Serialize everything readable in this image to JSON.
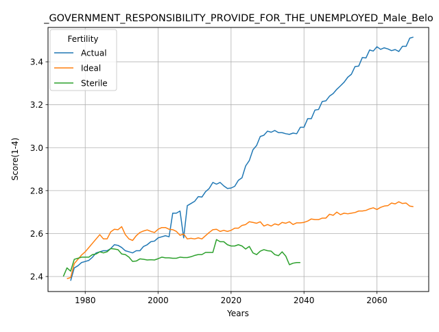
{
  "chart_data": {
    "type": "line",
    "title": "_GOVERNMENT_RESPONSIBILITY_PROVIDE_FOR_THE_UNEMPLOYED_Male_Belo",
    "xlabel": "Years",
    "ylabel": "Score(1-4)",
    "xlim": [
      1969.8,
      2074.2
    ],
    "ylim": [
      2.33,
      3.56
    ],
    "x_ticks": [
      1980,
      2000,
      2020,
      2040,
      2060
    ],
    "y_ticks": [
      2.4,
      2.6,
      2.8,
      3.0,
      3.2,
      3.4
    ],
    "x_tick_labels": [
      "1980",
      "2000",
      "2020",
      "2040",
      "2060"
    ],
    "y_tick_labels": [
      "2.4",
      "2.6",
      "2.8",
      "3.0",
      "3.2",
      "3.4"
    ],
    "grid": true,
    "legend": {
      "title": "Fertility",
      "position": "top-left"
    },
    "series": [
      {
        "name": "Actual",
        "color": "#1f77b4",
        "points": [
          [
            1976,
            2.38
          ],
          [
            1977,
            2.44
          ],
          [
            1978,
            2.45
          ],
          [
            1979,
            2.465
          ],
          [
            1980,
            2.47
          ],
          [
            1981,
            2.475
          ],
          [
            1982,
            2.49
          ],
          [
            1983,
            2.51
          ],
          [
            1984,
            2.515
          ],
          [
            1985,
            2.52
          ],
          [
            1986,
            2.52
          ],
          [
            1987,
            2.53
          ],
          [
            1988,
            2.548
          ],
          [
            1989,
            2.545
          ],
          [
            1990,
            2.535
          ],
          [
            1991,
            2.52
          ],
          [
            1992,
            2.515
          ],
          [
            1993,
            2.51
          ],
          [
            1994,
            2.52
          ],
          [
            1995,
            2.52
          ],
          [
            1996,
            2.54
          ],
          [
            1997,
            2.548
          ],
          [
            1998,
            2.562
          ],
          [
            1999,
            2.565
          ],
          [
            2000,
            2.58
          ],
          [
            2001,
            2.585
          ],
          [
            2002,
            2.59
          ],
          [
            2003,
            2.585
          ],
          [
            2004,
            2.695
          ],
          [
            2005,
            2.695
          ],
          [
            2006,
            2.705
          ],
          [
            2007,
            2.58
          ],
          [
            2008,
            2.73
          ],
          [
            2009,
            2.74
          ],
          [
            2010,
            2.75
          ],
          [
            2011,
            2.772
          ],
          [
            2012,
            2.77
          ],
          [
            2013,
            2.795
          ],
          [
            2014,
            2.81
          ],
          [
            2015,
            2.838
          ],
          [
            2016,
            2.83
          ],
          [
            2017,
            2.838
          ],
          [
            2018,
            2.822
          ],
          [
            2019,
            2.81
          ],
          [
            2020,
            2.812
          ],
          [
            2021,
            2.82
          ],
          [
            2022,
            2.848
          ],
          [
            2023,
            2.86
          ],
          [
            2024,
            2.915
          ],
          [
            2025,
            2.94
          ],
          [
            2026,
            2.99
          ],
          [
            2027,
            3.01
          ],
          [
            2028,
            3.052
          ],
          [
            2029,
            3.058
          ],
          [
            2030,
            3.077
          ],
          [
            2031,
            3.072
          ],
          [
            2032,
            3.08
          ],
          [
            2033,
            3.07
          ],
          [
            2034,
            3.07
          ],
          [
            2035,
            3.065
          ],
          [
            2036,
            3.062
          ],
          [
            2037,
            3.068
          ],
          [
            2038,
            3.065
          ],
          [
            2039,
            3.095
          ],
          [
            2040,
            3.095
          ],
          [
            2041,
            3.135
          ],
          [
            2042,
            3.135
          ],
          [
            2043,
            3.175
          ],
          [
            2044,
            3.178
          ],
          [
            2045,
            3.215
          ],
          [
            2046,
            3.218
          ],
          [
            2047,
            3.24
          ],
          [
            2048,
            3.252
          ],
          [
            2049,
            3.272
          ],
          [
            2050,
            3.288
          ],
          [
            2051,
            3.305
          ],
          [
            2052,
            3.328
          ],
          [
            2053,
            3.342
          ],
          [
            2054,
            3.378
          ],
          [
            2055,
            3.38
          ],
          [
            2056,
            3.42
          ],
          [
            2057,
            3.418
          ],
          [
            2058,
            3.455
          ],
          [
            2059,
            3.45
          ],
          [
            2060,
            3.47
          ],
          [
            2061,
            3.458
          ],
          [
            2062,
            3.465
          ],
          [
            2063,
            3.46
          ],
          [
            2064,
            3.452
          ],
          [
            2065,
            3.457
          ],
          [
            2066,
            3.448
          ],
          [
            2067,
            3.472
          ],
          [
            2068,
            3.472
          ],
          [
            2069,
            3.51
          ],
          [
            2070,
            3.515
          ]
        ]
      },
      {
        "name": "Ideal",
        "color": "#ff7f0e",
        "points": [
          [
            1975,
            2.39
          ],
          [
            1976,
            2.395
          ],
          [
            1977,
            2.46
          ],
          [
            1978,
            2.48
          ],
          [
            1979,
            2.5
          ],
          [
            1980,
            2.515
          ],
          [
            1981,
            2.535
          ],
          [
            1982,
            2.555
          ],
          [
            1983,
            2.575
          ],
          [
            1984,
            2.595
          ],
          [
            1985,
            2.575
          ],
          [
            1986,
            2.575
          ],
          [
            1987,
            2.608
          ],
          [
            1988,
            2.62
          ],
          [
            1989,
            2.618
          ],
          [
            1990,
            2.632
          ],
          [
            1991,
            2.595
          ],
          [
            1992,
            2.575
          ],
          [
            1993,
            2.568
          ],
          [
            1994,
            2.59
          ],
          [
            1995,
            2.605
          ],
          [
            1996,
            2.612
          ],
          [
            1997,
            2.617
          ],
          [
            1998,
            2.61
          ],
          [
            1999,
            2.605
          ],
          [
            2000,
            2.62
          ],
          [
            2001,
            2.628
          ],
          [
            2002,
            2.628
          ],
          [
            2003,
            2.62
          ],
          [
            2004,
            2.618
          ],
          [
            2005,
            2.61
          ],
          [
            2006,
            2.592
          ],
          [
            2007,
            2.598
          ],
          [
            2008,
            2.575
          ],
          [
            2009,
            2.578
          ],
          [
            2010,
            2.575
          ],
          [
            2011,
            2.58
          ],
          [
            2012,
            2.575
          ],
          [
            2013,
            2.59
          ],
          [
            2014,
            2.605
          ],
          [
            2015,
            2.618
          ],
          [
            2016,
            2.62
          ],
          [
            2017,
            2.61
          ],
          [
            2018,
            2.615
          ],
          [
            2019,
            2.61
          ],
          [
            2020,
            2.615
          ],
          [
            2021,
            2.625
          ],
          [
            2022,
            2.625
          ],
          [
            2023,
            2.638
          ],
          [
            2024,
            2.642
          ],
          [
            2025,
            2.655
          ],
          [
            2026,
            2.652
          ],
          [
            2027,
            2.648
          ],
          [
            2028,
            2.655
          ],
          [
            2029,
            2.635
          ],
          [
            2030,
            2.642
          ],
          [
            2031,
            2.635
          ],
          [
            2032,
            2.645
          ],
          [
            2033,
            2.64
          ],
          [
            2034,
            2.652
          ],
          [
            2035,
            2.648
          ],
          [
            2036,
            2.655
          ],
          [
            2037,
            2.642
          ],
          [
            2038,
            2.65
          ],
          [
            2039,
            2.65
          ],
          [
            2040,
            2.652
          ],
          [
            2041,
            2.658
          ],
          [
            2042,
            2.668
          ],
          [
            2043,
            2.665
          ],
          [
            2044,
            2.665
          ],
          [
            2045,
            2.672
          ],
          [
            2046,
            2.672
          ],
          [
            2047,
            2.69
          ],
          [
            2048,
            2.685
          ],
          [
            2049,
            2.7
          ],
          [
            2050,
            2.688
          ],
          [
            2051,
            2.695
          ],
          [
            2052,
            2.692
          ],
          [
            2053,
            2.695
          ],
          [
            2054,
            2.698
          ],
          [
            2055,
            2.705
          ],
          [
            2056,
            2.705
          ],
          [
            2057,
            2.708
          ],
          [
            2058,
            2.715
          ],
          [
            2059,
            2.72
          ],
          [
            2060,
            2.712
          ],
          [
            2061,
            2.722
          ],
          [
            2062,
            2.728
          ],
          [
            2063,
            2.73
          ],
          [
            2064,
            2.742
          ],
          [
            2065,
            2.738
          ],
          [
            2066,
            2.748
          ],
          [
            2067,
            2.74
          ],
          [
            2068,
            2.742
          ],
          [
            2069,
            2.728
          ],
          [
            2070,
            2.725
          ]
        ]
      },
      {
        "name": "Sterile",
        "color": "#2ca02c",
        "points": [
          [
            1974,
            2.4
          ],
          [
            1975,
            2.44
          ],
          [
            1976,
            2.425
          ],
          [
            1977,
            2.48
          ],
          [
            1978,
            2.485
          ],
          [
            1979,
            2.49
          ],
          [
            1980,
            2.49
          ],
          [
            1981,
            2.49
          ],
          [
            1982,
            2.502
          ],
          [
            1983,
            2.505
          ],
          [
            1984,
            2.515
          ],
          [
            1985,
            2.51
          ],
          [
            1986,
            2.515
          ],
          [
            1987,
            2.53
          ],
          [
            1988,
            2.528
          ],
          [
            1989,
            2.525
          ],
          [
            1990,
            2.505
          ],
          [
            1991,
            2.502
          ],
          [
            1992,
            2.49
          ],
          [
            1993,
            2.47
          ],
          [
            1994,
            2.472
          ],
          [
            1995,
            2.482
          ],
          [
            1996,
            2.48
          ],
          [
            1997,
            2.477
          ],
          [
            1998,
            2.478
          ],
          [
            1999,
            2.477
          ],
          [
            2000,
            2.483
          ],
          [
            2001,
            2.49
          ],
          [
            2002,
            2.487
          ],
          [
            2003,
            2.487
          ],
          [
            2004,
            2.485
          ],
          [
            2005,
            2.485
          ],
          [
            2006,
            2.49
          ],
          [
            2007,
            2.488
          ],
          [
            2008,
            2.488
          ],
          [
            2009,
            2.492
          ],
          [
            2010,
            2.498
          ],
          [
            2011,
            2.502
          ],
          [
            2012,
            2.502
          ],
          [
            2013,
            2.512
          ],
          [
            2014,
            2.512
          ],
          [
            2015,
            2.512
          ],
          [
            2016,
            2.572
          ],
          [
            2017,
            2.562
          ],
          [
            2018,
            2.562
          ],
          [
            2019,
            2.548
          ],
          [
            2020,
            2.542
          ],
          [
            2021,
            2.542
          ],
          [
            2022,
            2.548
          ],
          [
            2023,
            2.542
          ],
          [
            2024,
            2.528
          ],
          [
            2025,
            2.54
          ],
          [
            2026,
            2.51
          ],
          [
            2027,
            2.502
          ],
          [
            2028,
            2.518
          ],
          [
            2029,
            2.525
          ],
          [
            2030,
            2.52
          ],
          [
            2031,
            2.518
          ],
          [
            2032,
            2.502
          ],
          [
            2033,
            2.497
          ],
          [
            2034,
            2.515
          ],
          [
            2035,
            2.495
          ],
          [
            2036,
            2.455
          ],
          [
            2037,
            2.462
          ],
          [
            2038,
            2.465
          ],
          [
            2039,
            2.465
          ]
        ]
      }
    ]
  }
}
